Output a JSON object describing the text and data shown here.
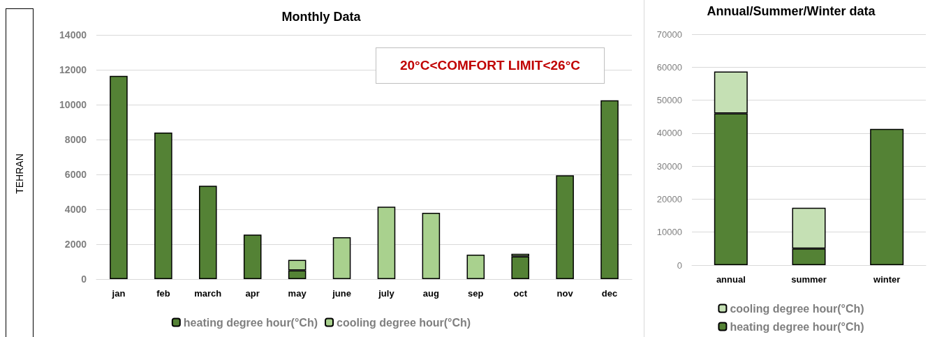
{
  "chart_data": [
    {
      "type": "bar",
      "title": "Monthly Data",
      "stacked": true,
      "categories": [
        "jan",
        "feb",
        "march",
        "apr",
        "may",
        "june",
        "july",
        "aug",
        "sep",
        "oct",
        "nov",
        "dec"
      ],
      "series": [
        {
          "name": "heating degree hour(°Ch)",
          "color": "#548235",
          "values": [
            11650,
            8400,
            5350,
            2550,
            500,
            null,
            null,
            null,
            null,
            1300,
            5950,
            10250
          ]
        },
        {
          "name": "cooling degree hour(°Ch)",
          "color": "#a9d18e",
          "values": [
            null,
            null,
            null,
            null,
            600,
            2400,
            4150,
            3800,
            1400,
            150,
            null,
            null
          ]
        }
      ],
      "ylim": [
        0,
        14000
      ],
      "yticks": [
        0,
        2000,
        4000,
        6000,
        8000,
        10000,
        12000,
        14000
      ],
      "grid": "y",
      "legend": "bottom",
      "annotations": [
        "20°C<COMFORT LIMIT<26°C",
        "TEHRAN"
      ]
    },
    {
      "type": "bar",
      "title": "Annual/Summer/Winter data",
      "stacked": true,
      "categories": [
        "annual",
        "summer",
        "winter"
      ],
      "series": [
        {
          "name": "heating degree hour(°Ch)",
          "color": "#548235",
          "values": [
            46000,
            5000,
            41300
          ]
        },
        {
          "name": "cooling degree hour(°Ch)",
          "color": "#c5e0b4",
          "values": [
            12700,
            12400,
            null
          ]
        }
      ],
      "ylim": [
        0,
        70000
      ],
      "yticks": [
        0,
        10000,
        20000,
        30000,
        40000,
        50000,
        60000,
        70000
      ],
      "grid": "y",
      "legend": "bottom"
    }
  ]
}
